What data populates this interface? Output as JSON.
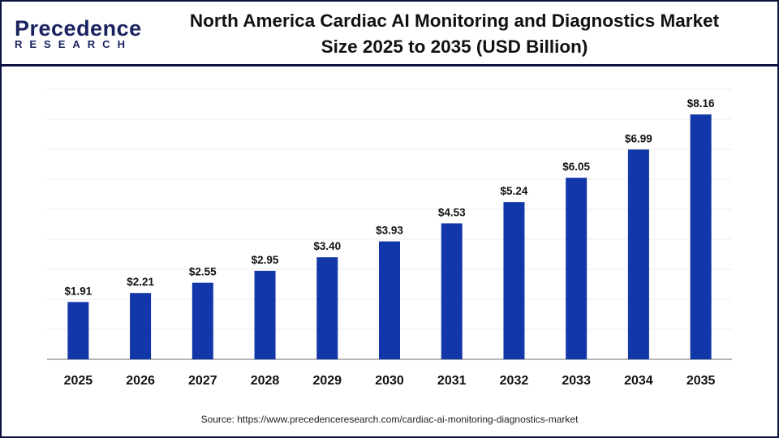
{
  "logo": {
    "line1": "Precedence",
    "line2": "RESEARCH"
  },
  "title_line1": "North America Cardiac AI Monitoring and Diagnostics Market",
  "title_line2": "Size 2025 to 2035 (USD Billion)",
  "source": "Source: https://www.precedenceresearch.com/cardiac-ai-monitoring-diagnostics-market",
  "chart_data": {
    "type": "bar",
    "title": "North America Cardiac AI Monitoring and Diagnostics Market Size 2025 to 2035 (USD Billion)",
    "categories": [
      "2025",
      "2026",
      "2027",
      "2028",
      "2029",
      "2030",
      "2031",
      "2032",
      "2033",
      "2034",
      "2035"
    ],
    "values": [
      1.91,
      2.21,
      2.55,
      2.95,
      3.4,
      3.93,
      4.53,
      5.24,
      6.05,
      6.99,
      8.16
    ],
    "labels": [
      "$1.91",
      "$2.21",
      "$2.55",
      "$2.95",
      "$3.40",
      "$3.93",
      "$4.53",
      "$5.24",
      "$6.05",
      "$6.99",
      "$8.16"
    ],
    "xlabel": "",
    "ylabel": "",
    "ylim": [
      0,
      9
    ],
    "grid": true,
    "bar_color": "#1237a8"
  }
}
